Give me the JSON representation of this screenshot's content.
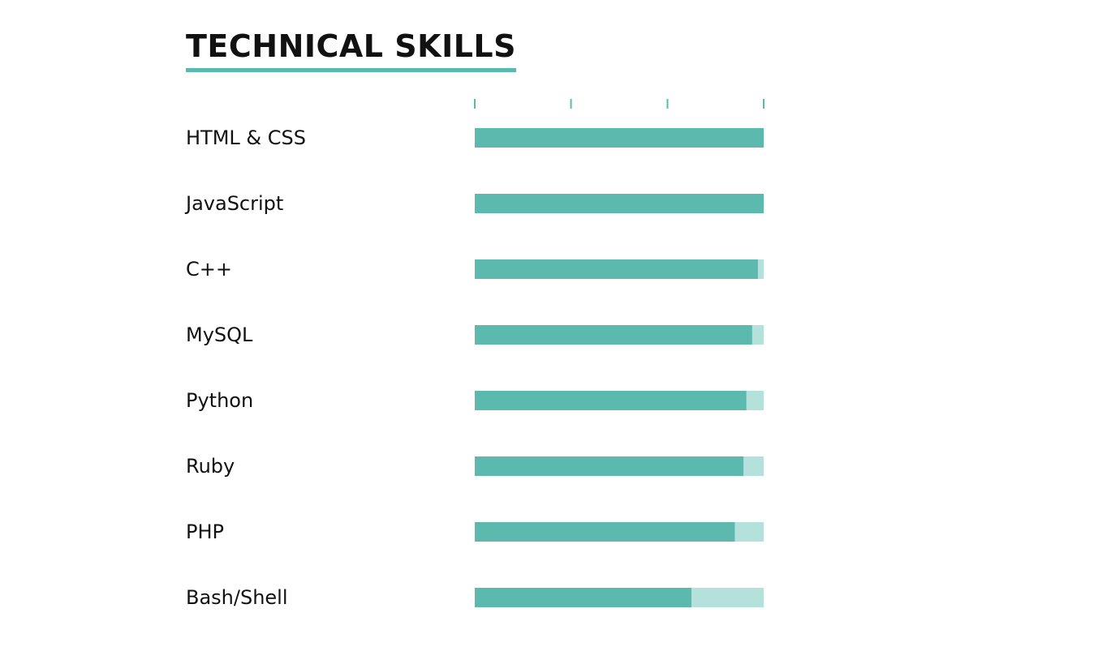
{
  "section": {
    "title": "TECHNICAL SKILLS"
  },
  "colors": {
    "accent": "#5cb9ad",
    "track": "#b5e1dc",
    "text": "#111111"
  },
  "chart_data": {
    "type": "bar",
    "orientation": "horizontal",
    "title": "TECHNICAL SKILLS",
    "categories": [
      "HTML & CSS",
      "JavaScript",
      "C++",
      "MySQL",
      "Python",
      "Ruby",
      "PHP",
      "Bash/Shell"
    ],
    "values": [
      100,
      100,
      98,
      96,
      94,
      93,
      90,
      75
    ],
    "xlim": [
      0,
      100
    ],
    "xticks": [
      0,
      33.3,
      66.7,
      100
    ],
    "xtick_labels_shown": false,
    "grid": false,
    "legend": "none"
  }
}
